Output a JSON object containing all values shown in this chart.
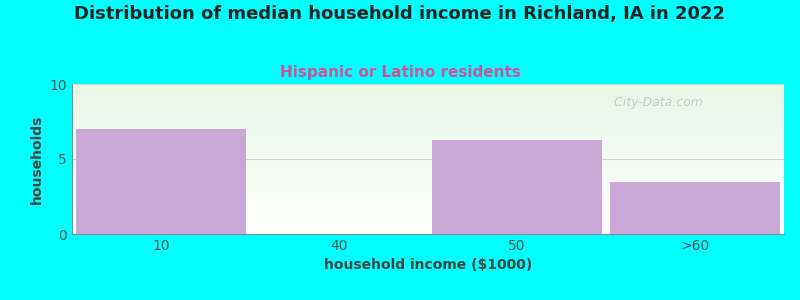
{
  "title": "Distribution of median household income in Richland, IA in 2022",
  "subtitle": "Hispanic or Latino residents",
  "xlabel": "household income ($1000)",
  "ylabel": "households",
  "categories": [
    "10",
    "40",
    "50",
    ">60"
  ],
  "values": [
    7,
    0,
    6.3,
    3.5
  ],
  "bar_color": "#C9A8D8",
  "bar_edge_color": "#C9A8D8",
  "bg_color": "#00FFFF",
  "ylim": [
    0,
    10
  ],
  "yticks": [
    0,
    5,
    10
  ],
  "title_fontsize": 13,
  "subtitle_fontsize": 11,
  "subtitle_color": "#CC5599",
  "axis_label_fontsize": 10,
  "tick_color": "#555555",
  "watermark": "  City-Data.com",
  "watermark_color": "#BBBBBB"
}
